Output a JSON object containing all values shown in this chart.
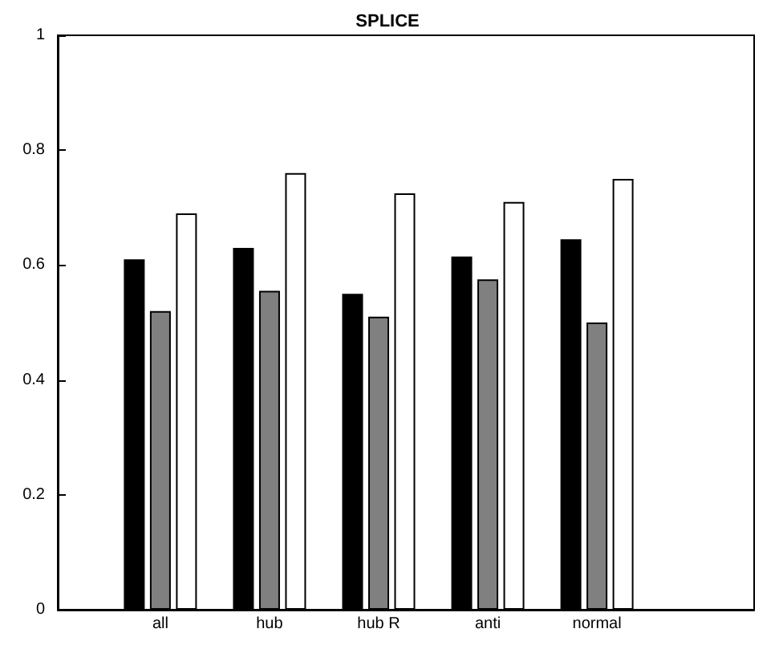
{
  "chart_data": {
    "type": "bar",
    "title": "SPLICE",
    "categories": [
      "all",
      "hub",
      "hub R",
      "anti",
      "normal"
    ],
    "series": [
      {
        "color": "#000000",
        "values": [
          0.61,
          0.63,
          0.55,
          0.615,
          0.645
        ]
      },
      {
        "color": "#808080",
        "values": [
          0.52,
          0.555,
          0.51,
          0.575,
          0.5
        ]
      },
      {
        "color": "#ffffff",
        "values": [
          0.69,
          0.76,
          0.725,
          0.71,
          0.75
        ]
      }
    ],
    "ylim": [
      0,
      1
    ],
    "yticks": [
      0,
      0.2,
      0.4,
      0.6,
      0.8,
      1
    ],
    "grid": false
  }
}
